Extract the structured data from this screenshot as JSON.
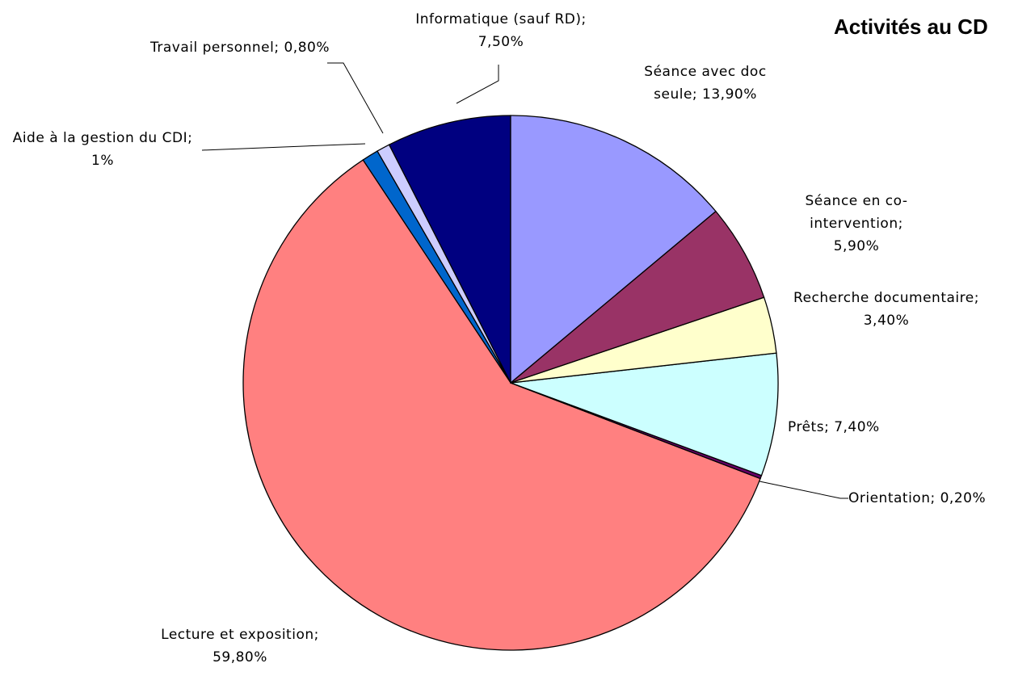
{
  "chart_data": {
    "type": "pie",
    "title": "Activités au CD",
    "categories": [
      "Séance avec doc seule",
      "Séance en co-intervention",
      "Recherche documentaire",
      "Prêts",
      "Orientation",
      "Lecture et exposition",
      "Aide à la gestion du CDI",
      "Travail personnel",
      "Informatique (sauf RD)"
    ],
    "values": [
      13.9,
      5.9,
      3.4,
      7.4,
      0.2,
      59.8,
      1,
      0.8,
      7.5
    ],
    "value_labels": [
      "; 13,90%",
      "; 5,90%",
      "; 3,40%",
      "; 7,40%",
      "; 0,20%",
      "; 59,80%",
      "; 1%",
      "; 0,80%",
      "; 7,50%"
    ],
    "colors": [
      "#9999ff",
      "#993366",
      "#ffffcc",
      "#ccffff",
      "#660066",
      "#ff8080",
      "#0066cc",
      "#ccccff",
      "#000080"
    ]
  }
}
